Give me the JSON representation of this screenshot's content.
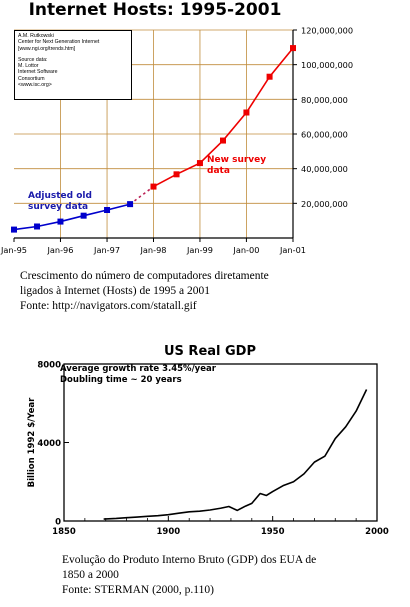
{
  "chart_data": [
    {
      "type": "line",
      "title": "Internet Hosts: 1995-2001",
      "credits": [
        "A.M. Rutkowski",
        "Center for Next Generation Internet",
        "[www.ngi.org/trends.htm]",
        "Source data:",
        "M. Lottor",
        "Internet Software",
        "Consortium",
        "<www.isc.org>"
      ],
      "x_tick_labels": [
        "Jan-95",
        "Jan-96",
        "Jan-97",
        "Jan-98",
        "Jan-99",
        "Jan-00",
        "Jan-01"
      ],
      "y_tick_labels": [
        "20,000,000",
        "40,000,000",
        "60,000,000",
        "80,000,000",
        "100,000,000",
        "120,000,000"
      ],
      "ylim": [
        0,
        120000000
      ],
      "grid": true,
      "series": [
        {
          "name": "Adjusted old survey data",
          "color": "#0000cc",
          "x": [
            "1995-01",
            "1995-07",
            "1996-01",
            "1996-07",
            "1997-01",
            "1997-07"
          ],
          "values": [
            4850000,
            6640000,
            9470000,
            12880000,
            16150000,
            19540000
          ]
        },
        {
          "name": "New survey data",
          "color": "#ee0000",
          "x": [
            "1998-01",
            "1998-07",
            "1999-01",
            "1999-07",
            "2000-01",
            "2000-07",
            "2001-01"
          ],
          "values": [
            29670000,
            36740000,
            43230000,
            56220000,
            72400000,
            93050000,
            109570000
          ]
        }
      ],
      "annotations": [
        "Adjusted old survey data",
        "New survey data"
      ]
    },
    {
      "type": "line",
      "title": "US Real GDP",
      "ylabel": "Billion 1992 $/Year",
      "annotations": [
        "Average growth rate 3.45%/year",
        "Doubling time ~ 20 years"
      ],
      "x_tick_labels": [
        "1850",
        "1900",
        "1950",
        "2000"
      ],
      "y_tick_labels": [
        "0",
        "4000",
        "8000"
      ],
      "xlim": [
        1850,
        2000
      ],
      "ylim": [
        0,
        8000
      ],
      "series": [
        {
          "color": "#000000",
          "x": [
            1869,
            1875,
            1880,
            1885,
            1890,
            1895,
            1900,
            1905,
            1910,
            1915,
            1920,
            1925,
            1929,
            1933,
            1937,
            1940,
            1944,
            1947,
            1950,
            1955,
            1960,
            1965,
            1970,
            1975,
            1980,
            1985,
            1990,
            1995
          ],
          "values": [
            100,
            130,
            170,
            200,
            240,
            270,
            320,
            400,
            470,
            500,
            560,
            650,
            740,
            540,
            760,
            900,
            1400,
            1300,
            1500,
            1800,
            2000,
            2400,
            3000,
            3300,
            4200,
            4800,
            5600,
            6700
          ]
        }
      ]
    }
  ],
  "captions": {
    "internet": [
      "Crescimento do número de computadores diretamente",
      "ligados à Internet (Hosts) de 1995 a 2001",
      "Fonte: http://navigators.com/statall.gif"
    ],
    "gdp": [
      "Evolução do Produto Interno Bruto (GDP) dos EUA de",
      "1850 a 2000",
      "Fonte: STERMAN (2000,  p.110)"
    ]
  }
}
